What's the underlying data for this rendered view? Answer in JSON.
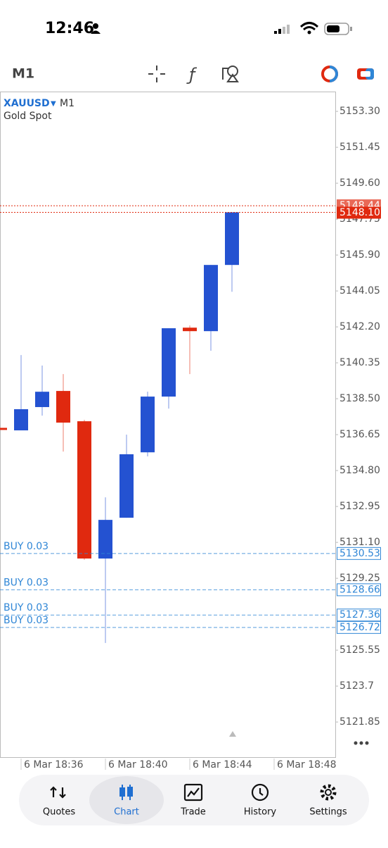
{
  "status_bar": {
    "time": "12:46"
  },
  "toolbar": {
    "timeframe": "M1"
  },
  "chart_data": {
    "type": "candlestick",
    "symbol": "XAUUSD",
    "timeframe": "M1",
    "description": "Gold Spot",
    "categories": [
      null,
      "6 Mar 18:36",
      null,
      null,
      null,
      "6 Mar 18:40",
      null,
      null,
      null,
      "6 Mar 18:44",
      null,
      null,
      null,
      "6 Mar 18:48"
    ],
    "open": [
      5137.0,
      5136.87,
      5138.07,
      5138.9,
      5137.34,
      5130.27,
      5132.37,
      5135.74,
      5138.61,
      5142.16,
      5141.98,
      5145.39,
      null,
      null
    ],
    "high": [
      5137.0,
      5140.75,
      5140.21,
      5139.77,
      5137.41,
      5133.42,
      5136.65,
      5138.86,
      5142.13,
      5142.27,
      5145.39,
      5148.1,
      null,
      null
    ],
    "low": [
      5136.9,
      5136.87,
      5137.63,
      5135.78,
      5130.2,
      5125.92,
      5132.37,
      5135.53,
      5137.99,
      5139.77,
      5140.97,
      5144.01,
      null,
      null
    ],
    "close": [
      5136.9,
      5137.96,
      5138.86,
      5137.27,
      5130.27,
      5132.26,
      5135.64,
      5138.61,
      5142.13,
      5141.98,
      5145.39,
      5148.1,
      null,
      null
    ],
    "up_color": "#2452d1",
    "down_color": "#e0290f",
    "ylim": [
      5120.04,
      5154.32
    ],
    "yticks": [
      {
        "value": 5153.3,
        "label": "5153.30"
      },
      5151.45,
      {
        "value": 5149.6,
        "label": "5149.60"
      },
      5147.75,
      {
        "value": 5145.9,
        "label": "5145.90"
      },
      5144.05,
      {
        "value": 5142.2,
        "label": "5142.20"
      },
      5140.35,
      {
        "value": 5138.5,
        "label": "5138.50"
      },
      5136.65,
      {
        "value": 5134.8,
        "label": "5134.80"
      },
      5132.95,
      {
        "value": 5131.1,
        "label": "5131.10"
      },
      5129.25,
      5125.55,
      5123.7,
      5121.85
    ],
    "bid": {
      "value": 5148.1,
      "label": "5148.10"
    },
    "ask": 5148.44,
    "bid_color": "#e0290f",
    "position_color": "#2f86d6",
    "positions": [
      {
        "label": "BUY 0.03",
        "price": 5130.53
      },
      {
        "label": "BUY 0.03",
        "price": 5128.66
      },
      {
        "label": "BUY 0.03",
        "price": 5127.36
      },
      {
        "label": "BUY 0.03",
        "price": 5126.72
      }
    ]
  },
  "nav": {
    "active": 1,
    "items": [
      {
        "label": "Quotes"
      },
      {
        "label": "Chart"
      },
      {
        "label": "Trade"
      },
      {
        "label": "History"
      },
      {
        "label": "Settings"
      }
    ]
  }
}
